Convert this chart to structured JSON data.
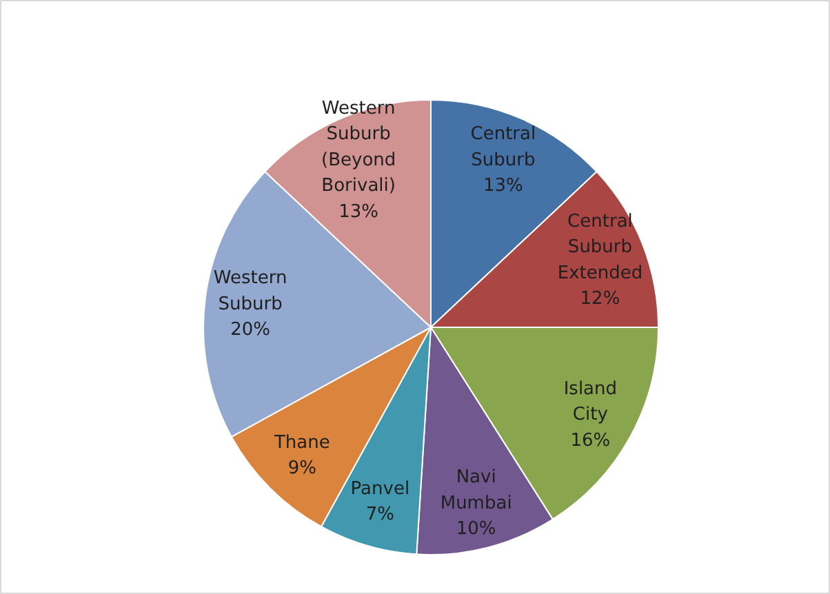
{
  "chart_data": {
    "type": "pie",
    "categories": [
      "Central Suburb",
      "Central Suburb Extended",
      "Island City",
      "Navi Mumbai",
      "Panvel",
      "Thane",
      "Western Suburb",
      "Western Suburb (Beyond Borivali)"
    ],
    "values": [
      13,
      12,
      16,
      10,
      7,
      9,
      20,
      13
    ],
    "value_labels": [
      "13%",
      "12%",
      "16%",
      "10%",
      "7%",
      "9%",
      "20%",
      "13%"
    ],
    "colors": [
      "#4572a7",
      "#aa4643",
      "#89a54e",
      "#71588f",
      "#4198af",
      "#db843d",
      "#93a9cf",
      "#d19392"
    ]
  }
}
